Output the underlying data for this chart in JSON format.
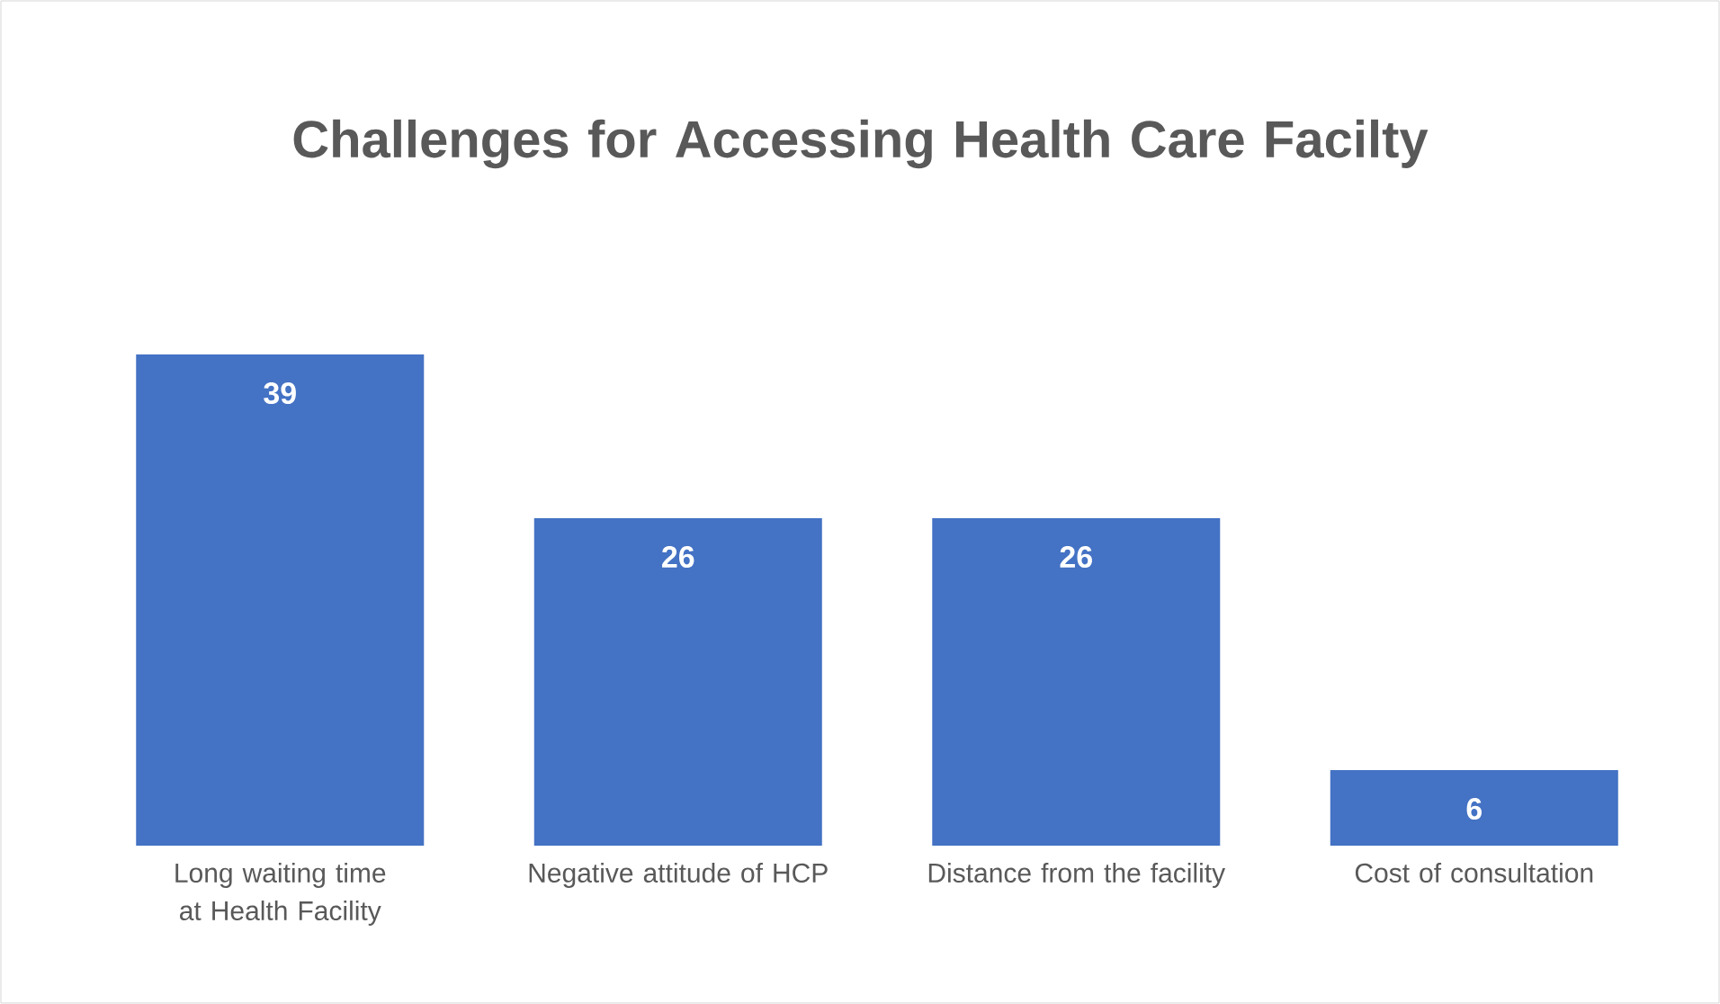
{
  "chart_data": {
    "type": "bar",
    "title": "Challenges for Accessing Health Care Facilty",
    "categories": [
      "Long waiting time at Health Facility",
      "Negative attitude of HCP",
      "Distance from the facility",
      "Cost of consultation"
    ],
    "values": [
      39,
      26,
      26,
      6
    ],
    "color": "#4472c4",
    "data_labels": true
  }
}
